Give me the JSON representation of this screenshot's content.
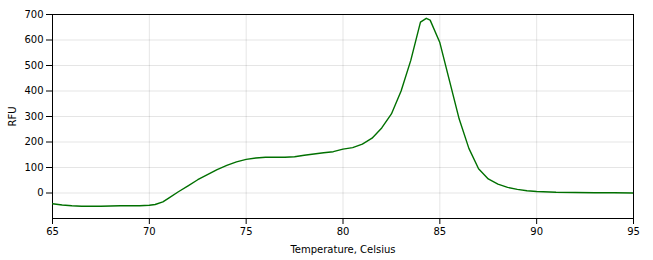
{
  "chart_data": {
    "type": "line",
    "xlabel": "Temperature, Celsius",
    "ylabel": "RFU",
    "x": [
      65.0,
      65.5,
      66.0,
      66.5,
      67.0,
      67.5,
      68.0,
      68.5,
      69.0,
      69.5,
      70.0,
      70.3,
      70.7,
      71.0,
      71.5,
      72.0,
      72.5,
      73.0,
      73.5,
      74.0,
      74.5,
      75.0,
      75.5,
      76.0,
      76.5,
      77.0,
      77.5,
      78.0,
      78.5,
      79.0,
      79.5,
      80.0,
      80.5,
      81.0,
      81.5,
      82.0,
      82.5,
      83.0,
      83.5,
      84.0,
      84.3,
      84.5,
      85.0,
      85.5,
      86.0,
      86.5,
      87.0,
      87.5,
      88.0,
      88.5,
      89.0,
      89.5,
      90.0,
      91.0,
      92.0,
      93.0,
      94.0,
      95.0
    ],
    "values": [
      -42,
      -47,
      -50,
      -52,
      -52,
      -52,
      -51,
      -50,
      -50,
      -50,
      -48,
      -45,
      -35,
      -20,
      5,
      28,
      52,
      72,
      92,
      108,
      122,
      132,
      137,
      140,
      140,
      140,
      142,
      148,
      153,
      158,
      162,
      172,
      178,
      192,
      215,
      255,
      310,
      400,
      520,
      670,
      685,
      678,
      590,
      440,
      290,
      175,
      95,
      55,
      35,
      22,
      14,
      9,
      6,
      3,
      2,
      1,
      1,
      0
    ],
    "color": "#007000",
    "xlim": [
      65,
      95
    ],
    "ylim": [
      -100,
      700
    ],
    "xticks": [
      65,
      70,
      75,
      80,
      85,
      90,
      95
    ],
    "yticks": [
      0,
      100,
      200,
      300,
      400,
      500,
      600,
      700
    ],
    "grid": true
  }
}
